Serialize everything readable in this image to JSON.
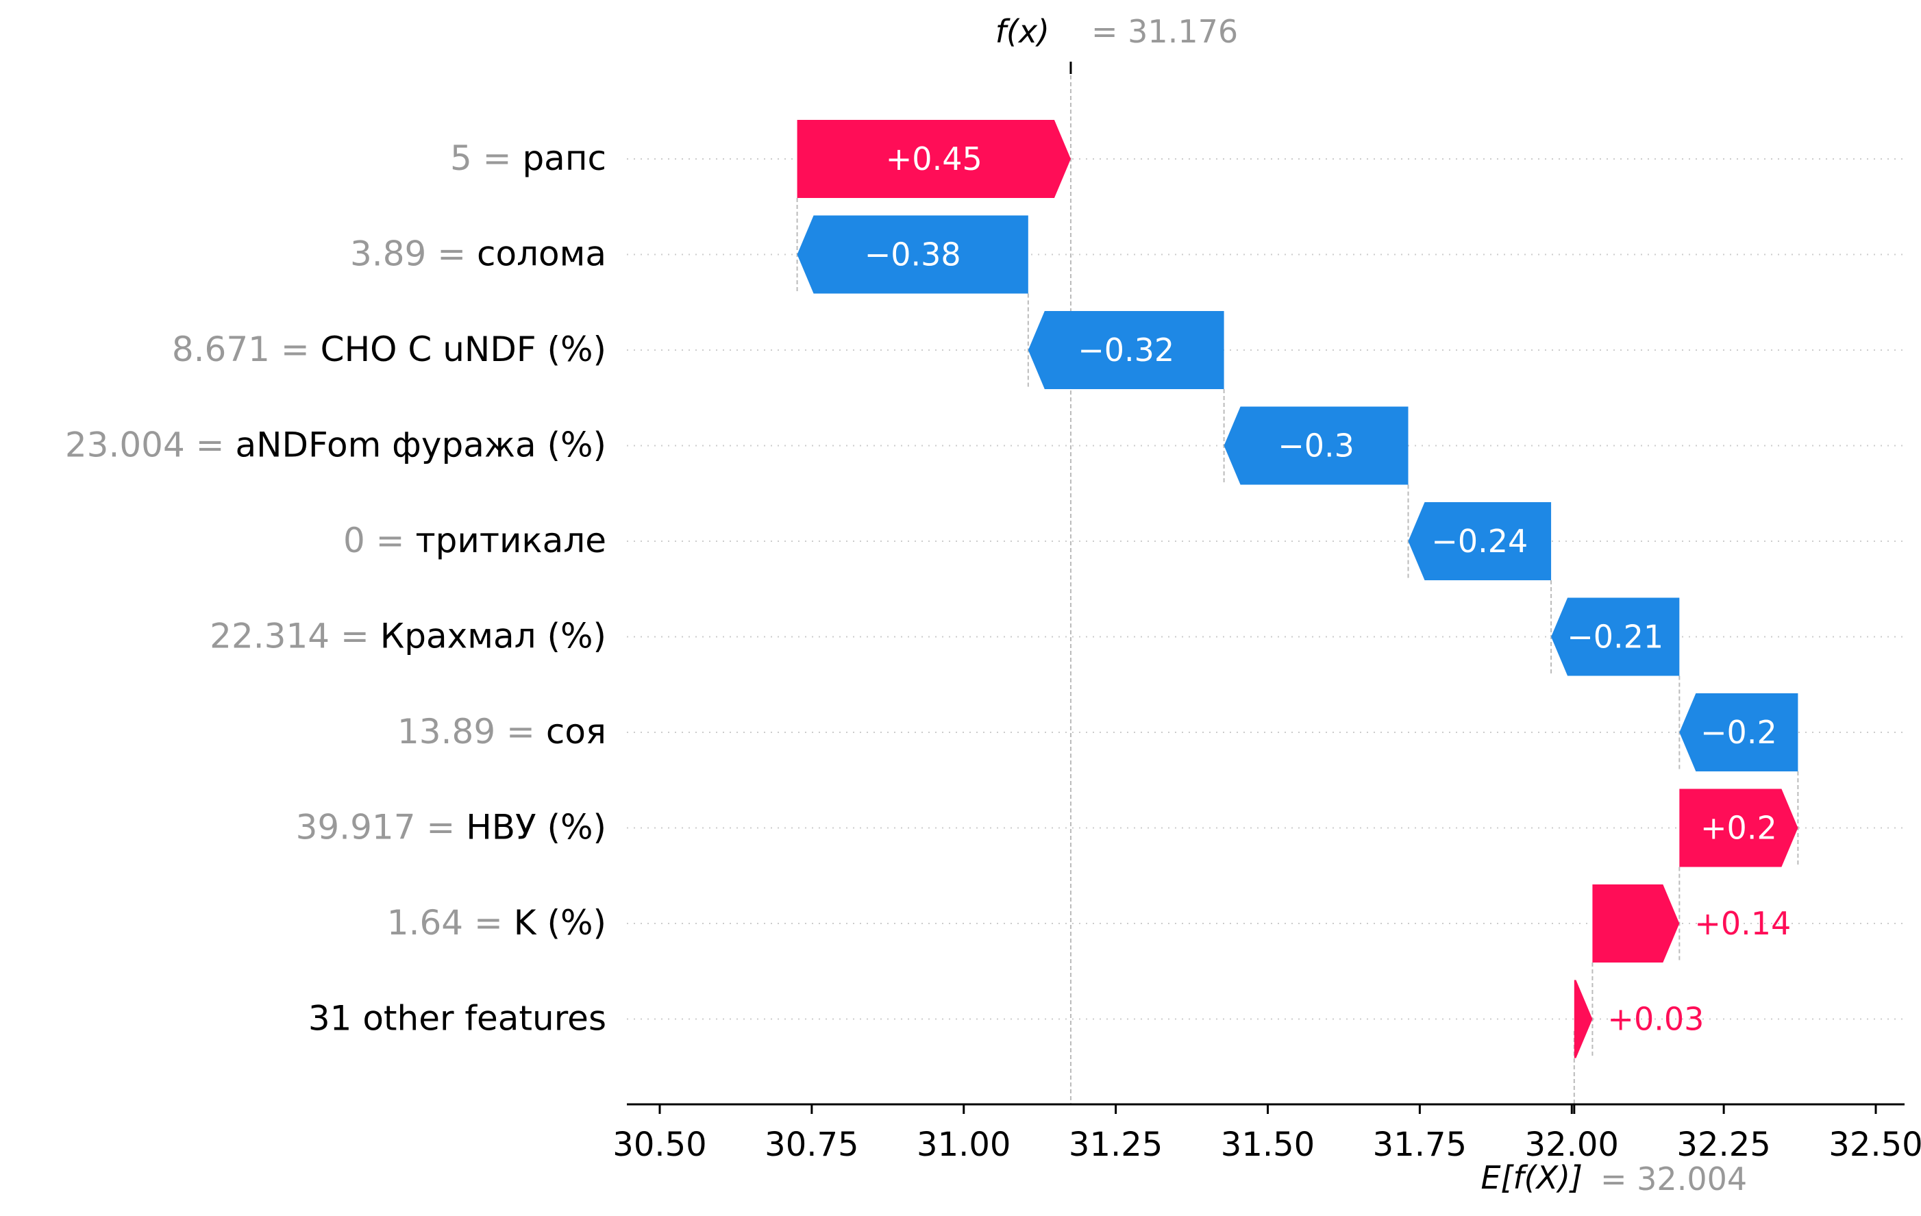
{
  "chart_data": {
    "type": "waterfall",
    "fx_label": "f(x)",
    "fx_eq": "= 31.176",
    "fx_value": 31.176,
    "ex_label": "E[f(X)]",
    "ex_eq": "= 32.004",
    "ex_value": 32.004,
    "xlim": [
      30.45,
      32.65
    ],
    "xticks": [
      30.5,
      30.75,
      31.0,
      31.25,
      31.5,
      31.75,
      32.0,
      32.25,
      32.5
    ],
    "xtick_labels": [
      "30.50",
      "30.75",
      "31.00",
      "31.25",
      "31.50",
      "31.75",
      "32.00",
      "32.25",
      "32.50"
    ],
    "rows": [
      {
        "value_text": "5",
        "feature": "рапс",
        "contribution": 0.45,
        "label": "+0.45",
        "start": 30.726,
        "end": 31.176
      },
      {
        "value_text": "3.89",
        "feature": "солома",
        "contribution": -0.38,
        "label": "−0.38",
        "start": 31.106,
        "end": 30.726
      },
      {
        "value_text": "8.671",
        "feature": "CHO C uNDF (%)",
        "contribution": -0.32,
        "label": "−0.32",
        "start": 31.428,
        "end": 31.106
      },
      {
        "value_text": "23.004",
        "feature": "aNDFom фуража (%)",
        "contribution": -0.3,
        "label": "−0.3",
        "start": 31.731,
        "end": 31.428
      },
      {
        "value_text": "0",
        "feature": "тритикале",
        "contribution": -0.24,
        "label": "−0.24",
        "start": 31.966,
        "end": 31.731
      },
      {
        "value_text": "22.314",
        "feature": "Крахмал (%)",
        "contribution": -0.21,
        "label": "−0.21",
        "start": 32.177,
        "end": 31.966
      },
      {
        "value_text": "13.89",
        "feature": "соя",
        "contribution": -0.2,
        "label": "−0.2",
        "start": 32.372,
        "end": 32.177
      },
      {
        "value_text": "39.917",
        "feature": "НВУ (%)",
        "contribution": 0.2,
        "label": "+0.2",
        "start": 32.177,
        "end": 32.372
      },
      {
        "value_text": "1.64",
        "feature": "K (%)",
        "contribution": 0.14,
        "label": "+0.14",
        "start": 32.034,
        "end": 32.177
      },
      {
        "value_text": "",
        "feature": "31 other features",
        "contribution": 0.03,
        "label": "+0.03",
        "start": 32.004,
        "end": 32.034
      }
    ],
    "colors": {
      "positive": "#ff0d57",
      "negative": "#1e88e5",
      "value_text": "#999999",
      "feature_text": "#000000",
      "gridline": "#cccccc",
      "axis": "#000000"
    }
  }
}
